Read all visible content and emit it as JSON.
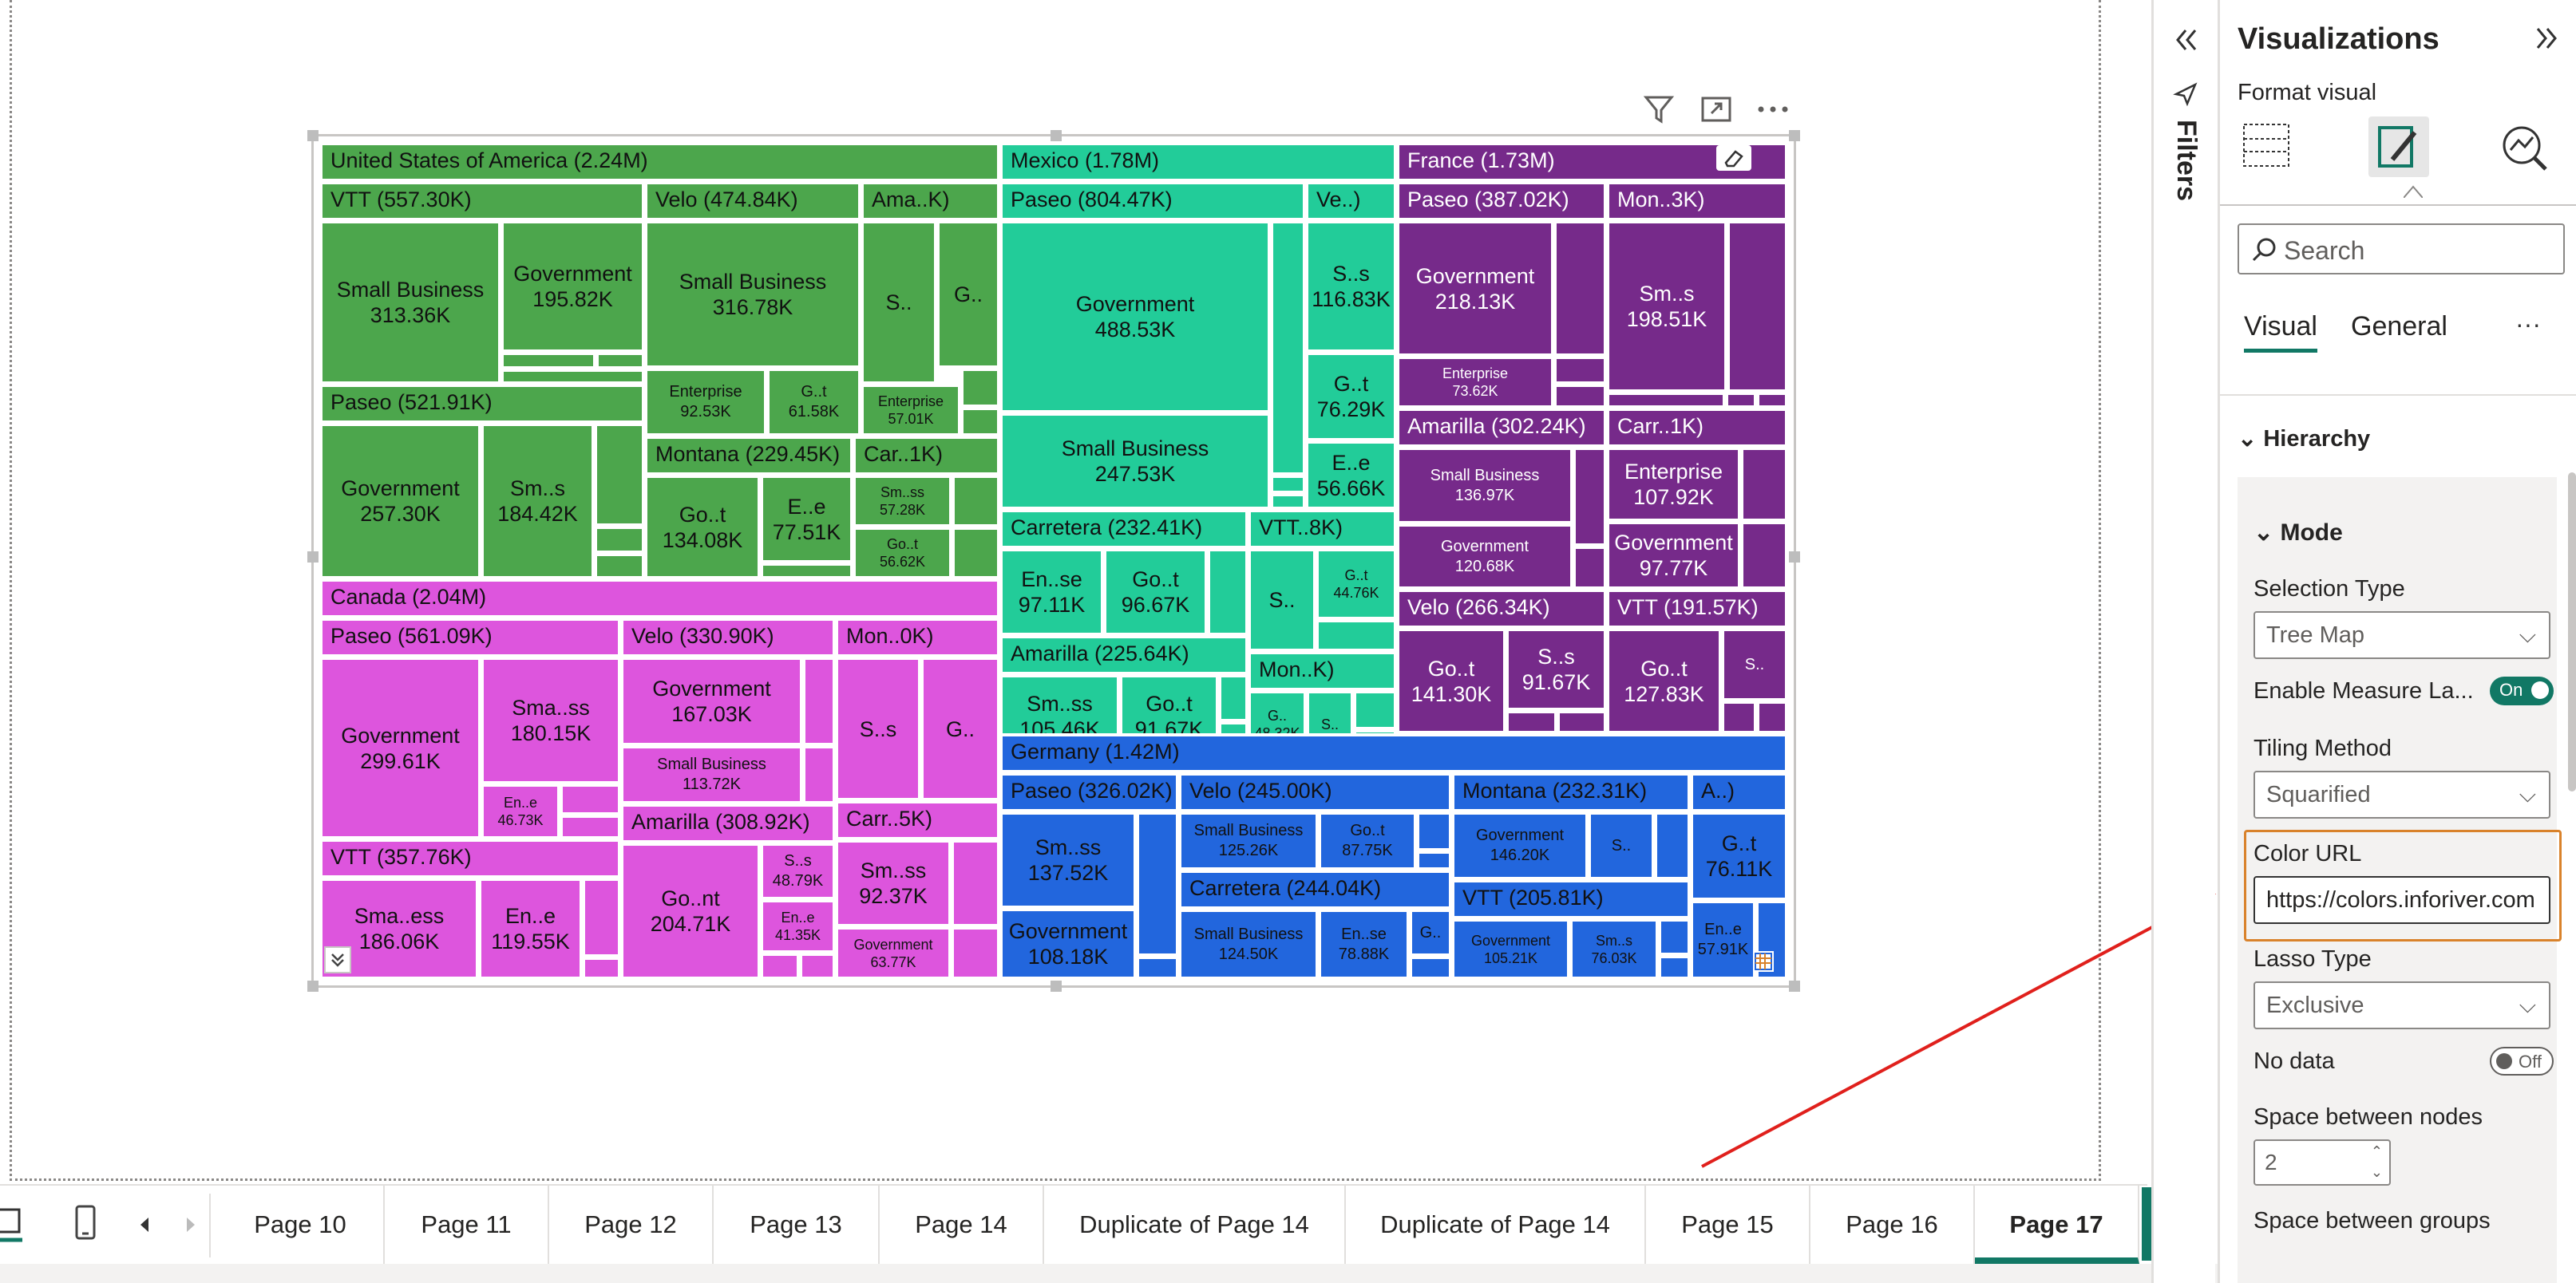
{
  "visual_header": {
    "filter_icon": "filter-icon",
    "focus_icon": "focus-mode-icon",
    "more_icon": "more-options-icon"
  },
  "treemap": {
    "us": {
      "title": "United States of America (2.24M)",
      "vtt": "VTT (557.30K)",
      "vtt_sb": [
        "Small Business",
        "313.36K"
      ],
      "vtt_gov": [
        "Government",
        "195.82K"
      ],
      "velo": "Velo (474.84K)",
      "velo_sb": [
        "Small Business",
        "316.78K"
      ],
      "velo_ent": [
        "Enterprise",
        "92.53K"
      ],
      "velo_got": [
        "G..t",
        "61.58K"
      ],
      "ama": "Ama..K)",
      "ama_s": "S..",
      "ama_g": "G..",
      "ama_ent": [
        "Enterprise",
        "57.01K"
      ],
      "paseo": "Paseo (521.91K)",
      "paseo_gov": [
        "Government",
        "257.30K"
      ],
      "paseo_sms": [
        "Sm..s",
        "184.42K"
      ],
      "montana": "Montana (229.45K)",
      "mont_got": [
        "Go..t",
        "134.08K"
      ],
      "mont_ee": [
        "E..e",
        "77.51K"
      ],
      "car": "Car..1K)",
      "car_smss": [
        "Sm..ss",
        "57.28K"
      ],
      "car_got": [
        "Go..t",
        "56.62K"
      ]
    },
    "mexico": {
      "title": "Mexico (1.78M)",
      "paseo": "Paseo (804.47K)",
      "paseo_gov": [
        "Government",
        "488.53K"
      ],
      "paseo_sb": [
        "Small Business",
        "247.53K"
      ],
      "ve": "Ve..)",
      "ve_ss": [
        "S..s",
        "116.83K"
      ],
      "ve_gt": [
        "G..t",
        "76.29K"
      ],
      "ve_ee": [
        "E..e",
        "56.66K"
      ],
      "carretera": "Carretera (232.41K)",
      "car_ense": [
        "En..se",
        "97.11K"
      ],
      "car_got": [
        "Go..t",
        "96.67K"
      ],
      "vtt": "VTT..8K)",
      "vtt_s": "S..",
      "vtt_gt": [
        "G..t",
        "44.76K"
      ],
      "amarilla": "Amarilla (225.64K)",
      "ama_smss": [
        "Sm..ss",
        "105.46K"
      ],
      "ama_got": [
        "Go..t",
        "91.67K"
      ],
      "mon": "Mon..K)",
      "mon_g": [
        "G..",
        "48.32K"
      ],
      "mon_s": "S.."
    },
    "france": {
      "title": "France (1.73M)",
      "paseo": "Paseo (387.02K)",
      "paseo_gov": [
        "Government",
        "218.13K"
      ],
      "paseo_ent": [
        "Enterprise",
        "73.62K"
      ],
      "mon": "Mon..3K)",
      "mon_sms": [
        "Sm..s",
        "198.51K"
      ],
      "amarilla": "Amarilla (302.24K)",
      "ama_sb": [
        "Small Business",
        "136.97K"
      ],
      "ama_gov": [
        "Government",
        "120.68K"
      ],
      "carr": "Carr..1K)",
      "carr_ent": [
        "Enterprise",
        "107.92K"
      ],
      "carr_gov": [
        "Government",
        "97.77K"
      ],
      "velo": "Velo (266.34K)",
      "velo_got": [
        "Go..t",
        "141.30K"
      ],
      "velo_ss": [
        "S..s",
        "91.67K"
      ],
      "vtt": "VTT (191.57K)",
      "vtt_got": [
        "Go..t",
        "127.83K"
      ],
      "vtt_s": "S.."
    },
    "canada": {
      "title": "Canada (2.04M)",
      "paseo": "Paseo (561.09K)",
      "paseo_gov": [
        "Government",
        "299.61K"
      ],
      "paseo_smass": [
        "Sma..ss",
        "180.15K"
      ],
      "paseo_ene": [
        "En..e",
        "46.73K"
      ],
      "velo": "Velo (330.90K)",
      "velo_gov": [
        "Government",
        "167.03K"
      ],
      "velo_sb": [
        "Small Business",
        "113.72K"
      ],
      "mon": "Mon..0K)",
      "mon_ss": "S..s",
      "mon_g": "G..",
      "vtt": "VTT (357.76K)",
      "vtt_smaess": [
        "Sma..ess",
        "186.06K"
      ],
      "vtt_ene": [
        "En..e",
        "119.55K"
      ],
      "amarilla": "Amarilla (308.92K)",
      "ama_gont": [
        "Go..nt",
        "204.71K"
      ],
      "ama_ss": [
        "S..s",
        "48.79K"
      ],
      "ama_ene": [
        "En..e",
        "41.35K"
      ],
      "carr": "Carr..5K)",
      "carr_smss": [
        "Sm..ss",
        "92.37K"
      ],
      "carr_gov": [
        "Government",
        "63.77K"
      ]
    },
    "germany": {
      "title": "Germany (1.42M)",
      "paseo": "Paseo (326.02K)",
      "paseo_smss": [
        "Sm..ss",
        "137.52K"
      ],
      "paseo_gov": [
        "Government",
        "108.18K"
      ],
      "velo": "Velo (245.00K)",
      "velo_sb": [
        "Small Business",
        "125.26K"
      ],
      "velo_got": [
        "Go..t",
        "87.75K"
      ],
      "carretera": "Carretera (244.04K)",
      "car_sb": [
        "Small Business",
        "124.50K"
      ],
      "car_ense": [
        "En..se",
        "78.88K"
      ],
      "car_g": "G..",
      "montana": "Montana (232.31K)",
      "mont_gov": [
        "Government",
        "146.20K"
      ],
      "mont_s": "S..",
      "vtt": "VTT (205.81K)",
      "vtt_gov": [
        "Government",
        "105.21K"
      ],
      "vtt_sms": [
        "Sm..s",
        "76.03K"
      ],
      "a": "A..)",
      "a_got": [
        "G..t",
        "76.11K"
      ],
      "a_ene": [
        "En..e",
        "57.91K"
      ]
    }
  },
  "tabs": [
    "Page 10",
    "Page 11",
    "Page 12",
    "Page 13",
    "Page 14",
    "Duplicate of Page 14",
    "Duplicate of Page 14",
    "Page 15",
    "Page 16",
    "Page 17"
  ],
  "active_tab": "Page 17",
  "filters_label": "Filters",
  "pane": {
    "title": "Visualizations",
    "subtitle": "Format visual",
    "search_placeholder": "Search",
    "tab_visual": "Visual",
    "tab_general": "General",
    "more": "···",
    "section": "Hierarchy",
    "subsection": "Mode",
    "selection_type_label": "Selection Type",
    "selection_type_value": "Tree Map",
    "enable_measure_label": "Enable Measure La...",
    "enable_measure_value": "On",
    "tiling_label": "Tiling Method",
    "tiling_value": "Squarified",
    "color_url_label": "Color URL",
    "color_url_value": "https://colors.inforiver.com",
    "lasso_label": "Lasso Type",
    "lasso_value": "Exclusive",
    "no_data_label": "No data",
    "no_data_value": "Off",
    "space_nodes_label": "Space between nodes",
    "space_nodes_value": "2",
    "space_groups_label": "Space between groups"
  },
  "colors": {
    "us": "#4ca64c",
    "mexico": "#22cc99",
    "france": "#762a8a",
    "canada": "#dd55dd",
    "germany": "#2266dd",
    "accent": "#117865",
    "highlight": "#d9822b",
    "arrow": "#e0201c"
  }
}
